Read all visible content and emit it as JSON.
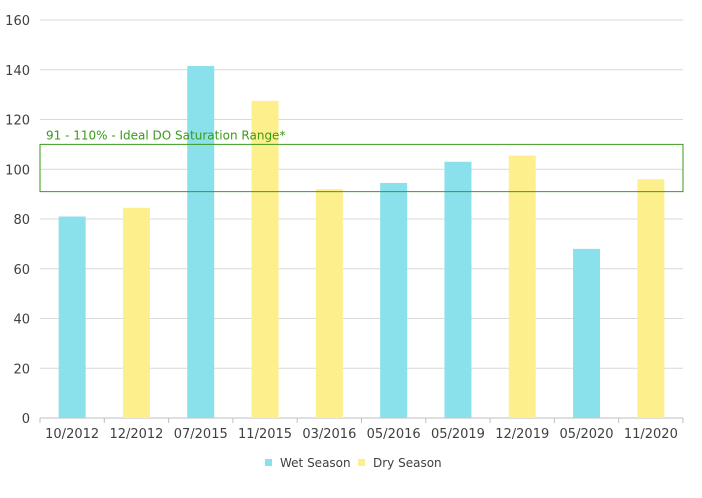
{
  "chart_data": {
    "type": "bar",
    "title": "",
    "xlabel": "",
    "ylabel": "",
    "ylim": [
      0,
      160
    ],
    "yticks": [
      0,
      20,
      40,
      60,
      80,
      100,
      120,
      140,
      160
    ],
    "grid": true,
    "legend_position": "bottom",
    "bars": [
      {
        "category": "10/2012",
        "value": 81,
        "series": "wet"
      },
      {
        "category": "12/2012",
        "value": 84.5,
        "series": "dry"
      },
      {
        "category": "07/2015",
        "value": 141.5,
        "series": "wet"
      },
      {
        "category": "11/2015",
        "value": 127.5,
        "series": "dry"
      },
      {
        "category": "03/2016",
        "value": 92,
        "series": "dry"
      },
      {
        "category": "05/2016",
        "value": 94.5,
        "series": "wet"
      },
      {
        "category": "05/2019",
        "value": 103,
        "series": "wet"
      },
      {
        "category": "12/2019",
        "value": 105.5,
        "series": "dry"
      },
      {
        "category": "05/2020",
        "value": 68,
        "series": "wet"
      },
      {
        "category": "11/2020",
        "value": 96,
        "series": "dry"
      }
    ],
    "series": [
      {
        "key": "wet",
        "name": "Wet Season",
        "color": "#8ae1ec"
      },
      {
        "key": "dry",
        "name": "Dry Season",
        "color": "#fdf08c"
      }
    ],
    "annotation": {
      "text": "91 - 110% - Ideal DO Saturation Range*",
      "range": [
        91,
        110
      ],
      "color": "#3a9a1a"
    },
    "gridline_color": "#d9d9d9",
    "axis_color": "#bfbfbf"
  }
}
